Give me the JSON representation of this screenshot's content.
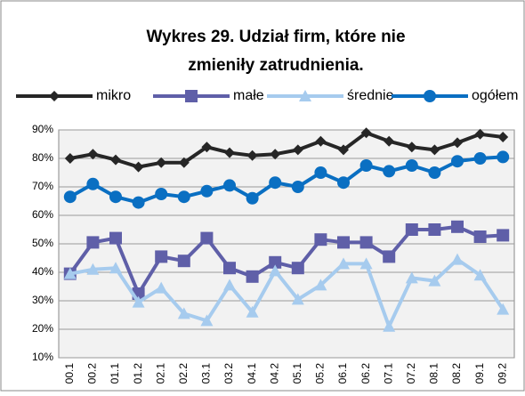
{
  "chart_data": {
    "type": "line",
    "title": [
      "Wykres 29. Udział firm, które nie",
      "zmieniły zatrudnienia."
    ],
    "categories": [
      "00.1",
      "00.2",
      "01.1",
      "01.2",
      "02.1",
      "02.2",
      "03.1",
      "03.2",
      "04.1",
      "04.2",
      "05.1",
      "05.2",
      "06.1",
      "06.2",
      "07.1",
      "07.2",
      "08.1",
      "08.2",
      "09.1",
      "09.2"
    ],
    "series": [
      {
        "name": "mikro",
        "color": "#262626",
        "marker": "diamond",
        "values": [
          80,
          81.5,
          79.5,
          77,
          78.5,
          78.5,
          84,
          82,
          81,
          81.5,
          83,
          86,
          83,
          89,
          86,
          84,
          83,
          85.5,
          88.5,
          87.5
        ]
      },
      {
        "name": "małe",
        "color": "#5f5fa8",
        "marker": "square",
        "values": [
          39.5,
          50.5,
          52,
          32.5,
          45.5,
          44,
          52,
          41.5,
          38.5,
          43.5,
          41.5,
          51.5,
          50.5,
          50.5,
          45.5,
          55,
          55,
          56,
          52.5,
          53
        ]
      },
      {
        "name": "średnie",
        "color": "#a6cbee",
        "marker": "triangle",
        "values": [
          39.5,
          41,
          41.5,
          29.5,
          34.5,
          25.5,
          23,
          35.5,
          26,
          40.5,
          30.5,
          35.5,
          43,
          43,
          21,
          38,
          37,
          44.5,
          39,
          27
        ]
      },
      {
        "name": "ogółem",
        "color": "#0a6fc2",
        "marker": "circle",
        "values": [
          66.5,
          71,
          66.5,
          64.5,
          67.5,
          66.5,
          68.5,
          70.5,
          66,
          71.5,
          70,
          75,
          71.5,
          77.5,
          75.5,
          77.5,
          75,
          79,
          80,
          80.5
        ]
      }
    ],
    "ylim": [
      10,
      90
    ],
    "yticks": [
      {
        "value": 10,
        "label": "10%"
      },
      {
        "value": 20,
        "label": "20%"
      },
      {
        "value": 30,
        "label": "30%"
      },
      {
        "value": 40,
        "label": "40%"
      },
      {
        "value": 50,
        "label": "50%"
      },
      {
        "value": 60,
        "label": "60%"
      },
      {
        "value": 70,
        "label": "70%"
      },
      {
        "value": 80,
        "label": "80%"
      },
      {
        "value": 90,
        "label": "90%"
      }
    ],
    "grid": true
  }
}
